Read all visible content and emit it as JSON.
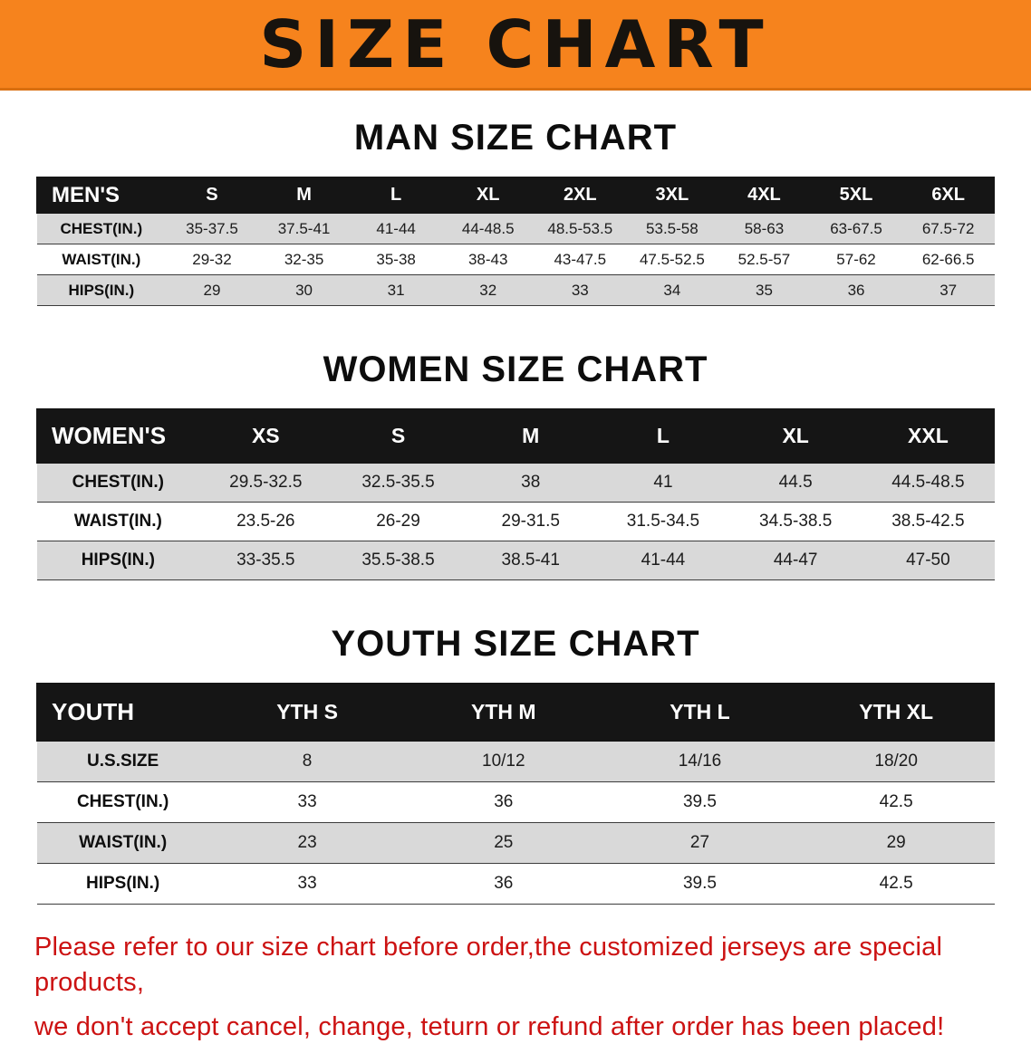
{
  "banner": {
    "title": "SIZE CHART",
    "background_color": "#f6831d",
    "text_color": "#17130e"
  },
  "sections": [
    {
      "heading": "MAN SIZE CHART",
      "table": {
        "header": [
          "MEN'S",
          "S",
          "M",
          "L",
          "XL",
          "2XL",
          "3XL",
          "4XL",
          "5XL",
          "6XL"
        ],
        "rows": [
          [
            "CHEST(IN.)",
            "35-37.5",
            "37.5-41",
            "41-44",
            "44-48.5",
            "48.5-53.5",
            "53.5-58",
            "58-63",
            "63-67.5",
            "67.5-72"
          ],
          [
            "WAIST(IN.)",
            "29-32",
            "32-35",
            "35-38",
            "38-43",
            "43-47.5",
            "47.5-52.5",
            "52.5-57",
            "57-62",
            "62-66.5"
          ],
          [
            "HIPS(IN.)",
            "29",
            "30",
            "31",
            "32",
            "33",
            "34",
            "35",
            "36",
            "37"
          ]
        ]
      }
    },
    {
      "heading": "WOMEN SIZE CHART",
      "table": {
        "header": [
          "WOMEN'S",
          "XS",
          "S",
          "M",
          "L",
          "XL",
          "XXL"
        ],
        "rows": [
          [
            "CHEST(IN.)",
            "29.5-32.5",
            "32.5-35.5",
            "38",
            "41",
            "44.5",
            "44.5-48.5"
          ],
          [
            "WAIST(IN.)",
            "23.5-26",
            "26-29",
            "29-31.5",
            "31.5-34.5",
            "34.5-38.5",
            "38.5-42.5"
          ],
          [
            "HIPS(IN.)",
            "33-35.5",
            "35.5-38.5",
            "38.5-41",
            "41-44",
            "44-47",
            "47-50"
          ]
        ]
      }
    },
    {
      "heading": "YOUTH SIZE CHART",
      "table": {
        "header": [
          "YOUTH",
          "YTH S",
          "YTH M",
          "YTH L",
          "YTH XL"
        ],
        "rows": [
          [
            "U.S.SIZE",
            "8",
            "10/12",
            "14/16",
            "18/20"
          ],
          [
            "CHEST(IN.)",
            "33",
            "36",
            "39.5",
            "42.5"
          ],
          [
            "WAIST(IN.)",
            "23",
            "25",
            "27",
            "29"
          ],
          [
            "HIPS(IN.)",
            "33",
            "36",
            "39.5",
            "42.5"
          ]
        ]
      }
    }
  ],
  "disclaimer": {
    "line1": "Please refer to our size chart before order,the customized jerseys are special products,",
    "line2": "we don't accept cancel, change, teturn or refund after order has been placed!",
    "color": "#cc1212"
  },
  "colors": {
    "table_header_bg": "#151515",
    "table_header_text": "#ffffff",
    "row_shaded_bg": "#d9d9d9",
    "row_plain_bg": "#ffffff"
  }
}
